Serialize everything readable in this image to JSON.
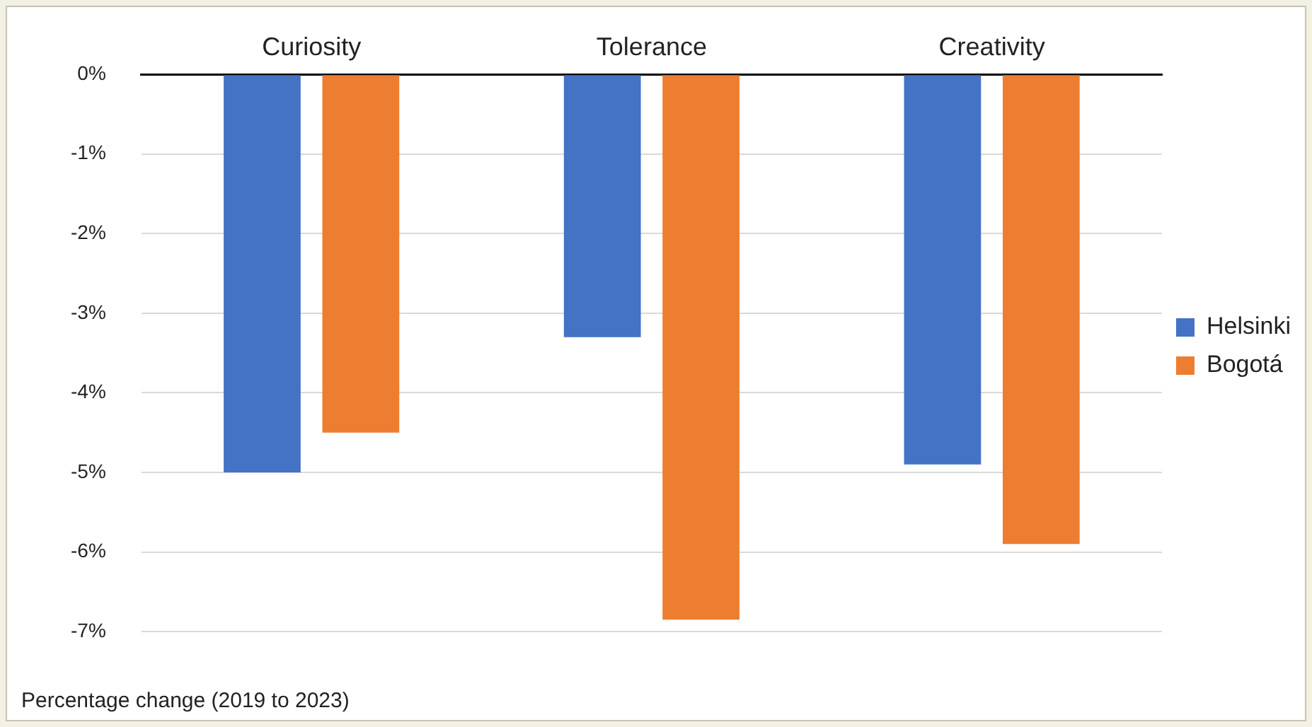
{
  "chart_data": {
    "type": "bar",
    "categories": [
      "Curiosity",
      "Tolerance",
      "Creativity"
    ],
    "series": [
      {
        "name": "Helsinki",
        "color": "#4472c4",
        "values": [
          -5.0,
          -3.3,
          -4.9
        ]
      },
      {
        "name": "Bogotá",
        "color": "#ed7d31",
        "values": [
          -4.5,
          -6.85,
          -5.9
        ]
      }
    ],
    "ylim": [
      -7,
      0
    ],
    "yticks": [
      {
        "value": 0,
        "label": "0%"
      },
      {
        "value": -1,
        "label": "-1%"
      },
      {
        "value": -2,
        "label": "-2%"
      },
      {
        "value": -3,
        "label": "-3%"
      },
      {
        "value": -4,
        "label": "-4%"
      },
      {
        "value": -5,
        "label": "-5%"
      },
      {
        "value": -6,
        "label": "-6%"
      },
      {
        "value": -7,
        "label": "-7%"
      }
    ],
    "grid": "y",
    "legend": "right",
    "annotations": [
      "Percentage change (2019 to 2023)"
    ]
  }
}
